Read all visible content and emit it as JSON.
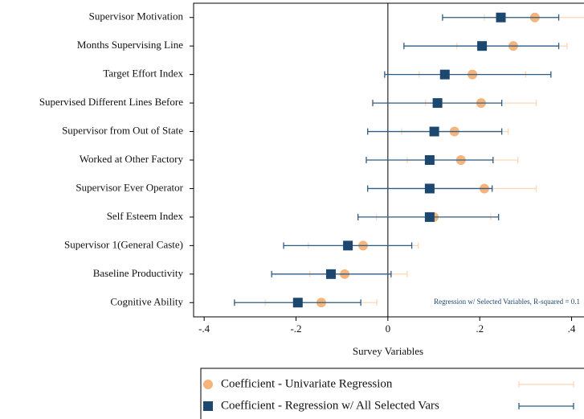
{
  "chart_data": {
    "type": "coefplot",
    "xlabel": "Survey Variables",
    "annotation": "Regression w/ Selected Variables, R-squared = 0.1",
    "categories": [
      "Supervisor Motivation",
      "Months Supervising Line",
      "Target Effort Index",
      "Supervised Different Lines Before",
      "Supervisor from Out of State",
      "Worked at Other Factory",
      "Supervisor Ever Operator",
      "Self Esteem Index",
      "Supervisor 1(General Caste)",
      "Baseline Productivity",
      "Cognitive Ability"
    ],
    "series": [
      {
        "name": "Coefficient - Univariate Regression",
        "color": "#f5b47c",
        "ci_color": "#fbd8b8",
        "marker": "circle",
        "values": [
          0.32,
          0.273,
          0.184,
          0.203,
          0.145,
          0.159,
          0.21,
          0.1,
          -0.054,
          -0.094,
          -0.145
        ],
        "lower": [
          0.21,
          0.15,
          0.068,
          0.082,
          0.03,
          0.042,
          0.1,
          -0.025,
          -0.173,
          -0.17,
          -0.267
        ],
        "upper": [
          0.45,
          0.39,
          0.3,
          0.323,
          0.262,
          0.283,
          0.323,
          0.224,
          0.066,
          0.042,
          -0.024
        ]
      },
      {
        "name": "Coefficient - Regression w/ All Selected Vars",
        "color": "#1c4870",
        "ci_color": "#2e5c85",
        "marker": "square",
        "values": [
          0.246,
          0.205,
          0.124,
          0.108,
          0.101,
          0.091,
          0.091,
          0.091,
          -0.087,
          -0.124,
          -0.196
        ],
        "lower": [
          0.119,
          0.035,
          -0.007,
          -0.033,
          -0.044,
          -0.047,
          -0.044,
          -0.065,
          -0.227,
          -0.253,
          -0.334
        ],
        "upper": [
          0.372,
          0.372,
          0.355,
          0.248,
          0.248,
          0.229,
          0.227,
          0.241,
          0.052,
          0.007,
          -0.059
        ]
      }
    ],
    "xlim": [
      -0.423,
      0.427
    ],
    "xticks": [
      {
        "value": -0.4,
        "label": "-.4"
      },
      {
        "value": -0.2,
        "label": "-.2"
      },
      0,
      {
        "value": 0.2,
        "label": ".2"
      },
      {
        "value": 0.4,
        "label": ".4"
      }
    ]
  }
}
